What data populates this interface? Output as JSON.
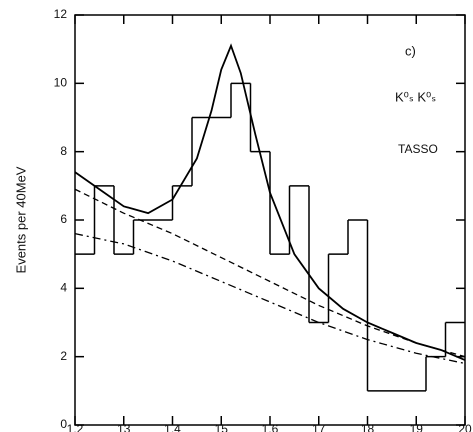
{
  "chart_data": {
    "type": "histogram",
    "ylabel": "Events per 40MeV",
    "annotations": [
      "c)",
      "K⁰ₛ K⁰ₛ",
      "TASSO"
    ],
    "bins": [
      1.2,
      1.24,
      1.28,
      1.32,
      1.36,
      1.4,
      1.44,
      1.48,
      1.52,
      1.56,
      1.6,
      1.64,
      1.68,
      1.72,
      1.76,
      1.8,
      1.84,
      1.88,
      1.92,
      1.96,
      2.0
    ],
    "counts": [
      5,
      7,
      5,
      6,
      6,
      7,
      9,
      9,
      10,
      8,
      5,
      7,
      3,
      5,
      6,
      1,
      1,
      1,
      2,
      3
    ],
    "color": "#000000",
    "curves": [
      {
        "style": "solid",
        "x": [
          1.2,
          1.25,
          1.3,
          1.35,
          1.4,
          1.45,
          1.48,
          1.5,
          1.52,
          1.54,
          1.57,
          1.6,
          1.65,
          1.7,
          1.75,
          1.8,
          1.85,
          1.9,
          1.95,
          2.0
        ],
        "values": [
          7.4,
          6.9,
          6.4,
          6.2,
          6.6,
          7.8,
          9.2,
          10.4,
          11.1,
          10.3,
          8.5,
          6.8,
          5.0,
          4.0,
          3.4,
          3.0,
          2.7,
          2.4,
          2.2,
          1.9
        ]
      },
      {
        "style": "dashed",
        "x": [
          1.2,
          1.3,
          1.4,
          1.5,
          1.6,
          1.7,
          1.8,
          1.9,
          2.0
        ],
        "values": [
          6.9,
          6.2,
          5.6,
          4.9,
          4.2,
          3.5,
          2.9,
          2.4,
          2.0
        ]
      },
      {
        "style": "dashdot",
        "x": [
          1.2,
          1.3,
          1.4,
          1.5,
          1.6,
          1.7,
          1.8,
          1.9,
          2.0
        ],
        "values": [
          5.6,
          5.3,
          4.8,
          4.2,
          3.6,
          3.0,
          2.5,
          2.1,
          1.8
        ]
      }
    ],
    "xlim": [
      1.2,
      2.0
    ],
    "ylim": [
      0,
      12
    ],
    "xticks": [
      1.2,
      {
        "value": 1.3,
        "label": "13"
      },
      1.4,
      {
        "value": 1.5,
        "label": "15"
      },
      1.6,
      {
        "value": 1.7,
        "label": "17"
      },
      {
        "value": 1.8,
        "label": "18"
      },
      {
        "value": 1.9,
        "label": "19"
      },
      {
        "value": 2.0,
        "label": "20"
      }
    ],
    "yticks": [
      0,
      2,
      4,
      6,
      8,
      10,
      12
    ]
  }
}
